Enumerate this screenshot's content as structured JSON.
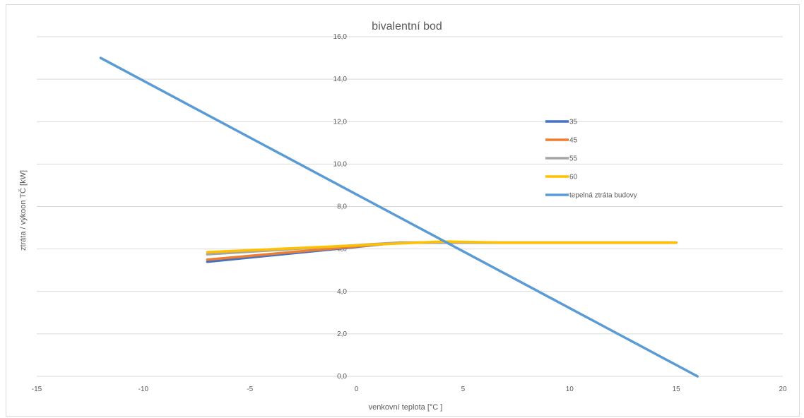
{
  "chart_data": {
    "type": "line",
    "title": "bivalentní bod",
    "xlabel": "venkovní teplota [°C ]",
    "ylabel": "ztráta / výkoon TČ [kW]",
    "xlim": [
      -15,
      20
    ],
    "ylim": [
      0,
      16
    ],
    "x_ticks": [
      "-15",
      "-10",
      "-5",
      "0",
      "5",
      "10",
      "15",
      "20"
    ],
    "y_ticks": [
      "0,0",
      "2,0",
      "4,0",
      "6,0",
      "8,0",
      "10,0",
      "12,0",
      "14,0",
      "16,0"
    ],
    "grid": true,
    "legend_position": "right",
    "series": [
      {
        "name": "35",
        "color": "#4472c4",
        "x": [
          -7,
          2,
          7,
          15
        ],
        "y": [
          5.4,
          6.3,
          6.3,
          6.3
        ]
      },
      {
        "name": "45",
        "color": "#ed7d31",
        "x": [
          -7,
          2,
          7,
          15
        ],
        "y": [
          5.5,
          6.3,
          6.3,
          6.3
        ]
      },
      {
        "name": "55",
        "color": "#a5a5a5",
        "x": [
          -7,
          2,
          7,
          15
        ],
        "y": [
          5.75,
          6.3,
          6.3,
          6.3
        ]
      },
      {
        "name": "60",
        "color": "#ffc000",
        "x": [
          -7,
          4,
          7,
          15
        ],
        "y": [
          5.85,
          6.35,
          6.3,
          6.3
        ]
      },
      {
        "name": "tepelná ztráta budovy",
        "color": "#5b9bd5",
        "x": [
          -12,
          16
        ],
        "y": [
          15.0,
          0.0
        ]
      }
    ]
  }
}
